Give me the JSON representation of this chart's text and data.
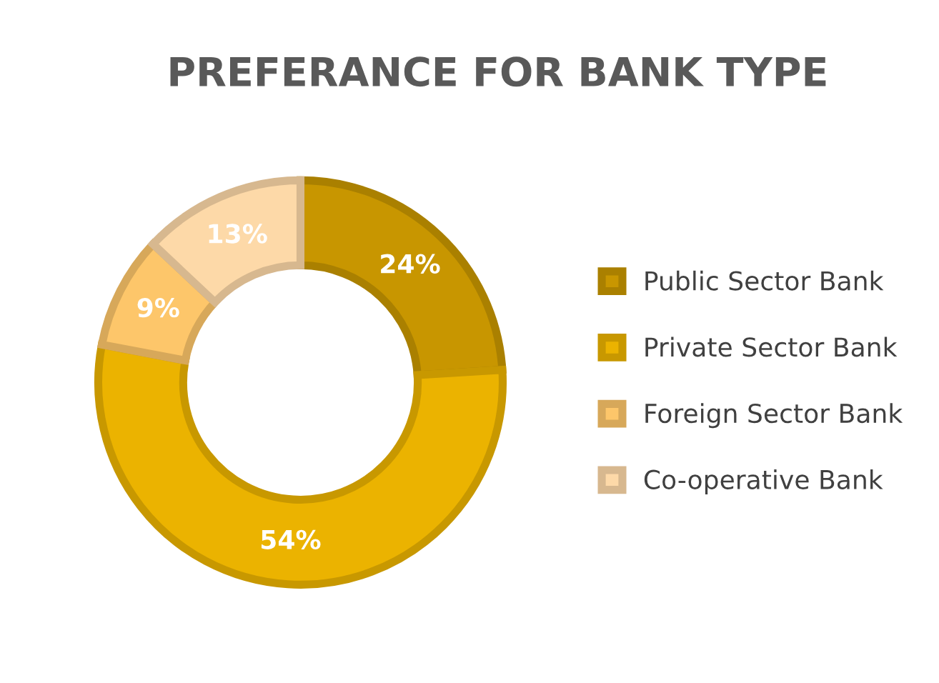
{
  "chart_data": {
    "type": "donut",
    "title": "PREFERANCE FOR BANK TYPE",
    "categories": [
      "Public Sector Bank",
      "Private Sector Bank",
      "Foreign Sector Bank",
      "Co-operative Bank"
    ],
    "values": [
      24,
      54,
      9,
      13
    ],
    "colors": [
      "#c89600",
      "#ebb300",
      "#fdc66a",
      "#fdd9a8"
    ],
    "value_labels": [
      "24%",
      "54%",
      "9%",
      "13%"
    ],
    "legend": "right"
  }
}
